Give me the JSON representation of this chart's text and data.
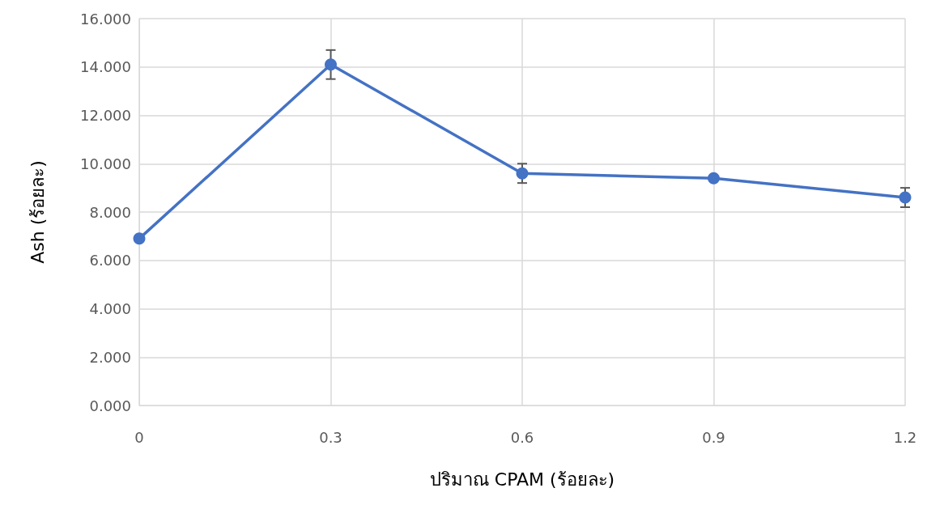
{
  "chart_data": {
    "type": "line",
    "xlabel": "ปริมาณ CPAM (ร้อยละ)",
    "ylabel": "Ash (ร้อยละ)",
    "x": [
      0,
      0.3,
      0.6,
      0.9,
      1.2
    ],
    "series": [
      {
        "color": "#4472c4",
        "values": [
          6.9,
          14.1,
          9.6,
          9.4,
          8.6
        ],
        "errors": [
          null,
          0.6,
          0.4,
          null,
          0.4
        ]
      }
    ],
    "xlim": [
      0,
      1.2
    ],
    "xticks": [
      0,
      0.3,
      0.6,
      0.9,
      1.2
    ],
    "ylim": [
      0,
      16
    ],
    "yticks": [
      {
        "value": 0,
        "label": "0.000"
      },
      {
        "value": 2,
        "label": "2.000"
      },
      {
        "value": 4,
        "label": "4.000"
      },
      {
        "value": 6,
        "label": "6.000"
      },
      {
        "value": 8,
        "label": "8.000"
      },
      {
        "value": 10,
        "label": "10.000"
      },
      {
        "value": 12,
        "label": "12.000"
      },
      {
        "value": 14,
        "label": "14.000"
      },
      {
        "value": 16,
        "label": "16.000"
      }
    ],
    "grid": true,
    "marker": "circle",
    "line_style": "solid"
  }
}
